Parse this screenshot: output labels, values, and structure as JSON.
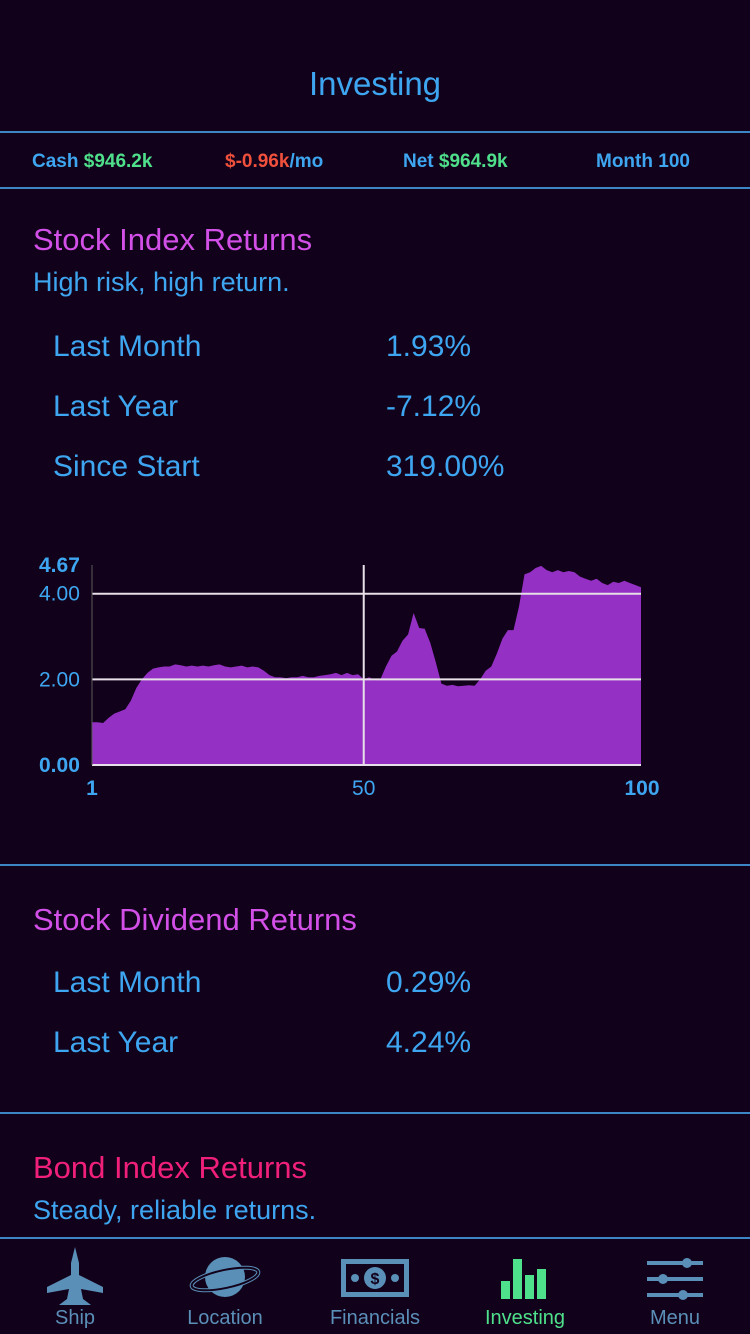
{
  "header": {
    "title": "Investing"
  },
  "stats": {
    "cash_label": "Cash",
    "cash_value": "$946.2k",
    "flow_value": "$-0.96k",
    "flow_unit": "/mo",
    "net_label": "Net",
    "net_value": "$964.9k",
    "month_label": "Month 100"
  },
  "stock_index": {
    "title": "Stock Index Returns",
    "subtitle": "High risk, high return.",
    "rows": [
      {
        "label": "Last Month",
        "value": "1.93%"
      },
      {
        "label": "Last Year",
        "value": "-7.12%"
      },
      {
        "label": "Since Start",
        "value": "319.00%"
      }
    ]
  },
  "stock_dividend": {
    "title": "Stock Dividend Returns",
    "rows": [
      {
        "label": "Last Month",
        "value": "0.29%"
      },
      {
        "label": "Last Year",
        "value": "4.24%"
      }
    ]
  },
  "bond_index": {
    "title": "Bond Index Returns",
    "subtitle": "Steady, reliable returns."
  },
  "chart_data": {
    "type": "area",
    "ymax_label": "4.67",
    "y_ticks": [
      "4.00",
      "2.00",
      "0.00"
    ],
    "x_ticks": [
      "1",
      "50",
      "100"
    ],
    "xlim": [
      1,
      100
    ],
    "ylim": [
      0,
      4.67
    ],
    "marker_x": 50,
    "fill_color": "#9430c4",
    "x": [
      1,
      2,
      3,
      4,
      5,
      6,
      7,
      8,
      9,
      10,
      11,
      12,
      13,
      14,
      15,
      16,
      17,
      18,
      19,
      20,
      21,
      22,
      23,
      24,
      25,
      26,
      27,
      28,
      29,
      30,
      31,
      32,
      33,
      34,
      35,
      36,
      37,
      38,
      39,
      40,
      41,
      42,
      43,
      44,
      45,
      46,
      47,
      48,
      49,
      50,
      51,
      52,
      53,
      54,
      55,
      56,
      57,
      58,
      59,
      60,
      61,
      62,
      63,
      64,
      65,
      66,
      67,
      68,
      69,
      70,
      71,
      72,
      73,
      74,
      75,
      76,
      77,
      78,
      79,
      80,
      81,
      82,
      83,
      84,
      85,
      86,
      87,
      88,
      89,
      90,
      91,
      92,
      93,
      94,
      95,
      96,
      97,
      98,
      99,
      100
    ],
    "values": [
      1.0,
      1.0,
      0.98,
      1.1,
      1.2,
      1.25,
      1.3,
      1.5,
      1.8,
      2.0,
      2.15,
      2.25,
      2.28,
      2.3,
      2.3,
      2.35,
      2.33,
      2.3,
      2.32,
      2.3,
      2.32,
      2.3,
      2.33,
      2.35,
      2.3,
      2.28,
      2.3,
      2.32,
      2.28,
      2.3,
      2.28,
      2.2,
      2.1,
      2.05,
      2.05,
      2.03,
      2.05,
      2.05,
      2.08,
      2.05,
      2.05,
      2.08,
      2.1,
      2.12,
      2.15,
      2.1,
      2.15,
      2.1,
      2.12,
      2.0,
      2.05,
      1.98,
      2.0,
      2.3,
      2.55,
      2.65,
      2.9,
      3.05,
      3.55,
      3.2,
      3.18,
      2.85,
      2.4,
      1.9,
      1.85,
      1.87,
      1.84,
      1.85,
      1.86,
      1.85,
      2.0,
      2.2,
      2.3,
      2.6,
      2.95,
      3.15,
      3.15,
      3.7,
      4.45,
      4.5,
      4.6,
      4.65,
      4.55,
      4.5,
      4.55,
      4.5,
      4.53,
      4.5,
      4.4,
      4.35,
      4.3,
      4.35,
      4.25,
      4.2,
      4.28,
      4.25,
      4.3,
      4.25,
      4.2,
      4.15
    ]
  },
  "tabs": [
    {
      "label": "Ship",
      "icon": "ship-icon"
    },
    {
      "label": "Location",
      "icon": "planet-icon"
    },
    {
      "label": "Financials",
      "icon": "banknote-icon"
    },
    {
      "label": "Investing",
      "icon": "bar-chart-icon"
    },
    {
      "label": "Menu",
      "icon": "sliders-icon"
    }
  ]
}
